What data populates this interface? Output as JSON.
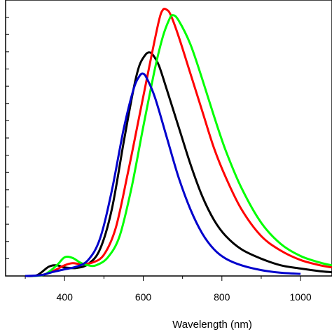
{
  "chart_data": {
    "type": "line",
    "xlabel": "Wavelength (nm)",
    "ylabel": "",
    "xlim": [
      250,
      1080
    ],
    "ylim": [
      0,
      1.0
    ],
    "x_ticks": [
      400,
      600,
      800,
      1000
    ],
    "x_tick_labels": [
      "400",
      "600",
      "800",
      "1000"
    ],
    "y_tick_count": 16,
    "grid": false,
    "legend": "none",
    "series": [
      {
        "color": "#000000",
        "points": [
          [
            300,
            0.0
          ],
          [
            330,
            0.003
          ],
          [
            360,
            0.035
          ],
          [
            380,
            0.04
          ],
          [
            400,
            0.032
          ],
          [
            430,
            0.03
          ],
          [
            460,
            0.045
          ],
          [
            490,
            0.1
          ],
          [
            520,
            0.25
          ],
          [
            550,
            0.5
          ],
          [
            575,
            0.7
          ],
          [
            590,
            0.79
          ],
          [
            605,
            0.83
          ],
          [
            615,
            0.84
          ],
          [
            625,
            0.83
          ],
          [
            640,
            0.79
          ],
          [
            660,
            0.7
          ],
          [
            690,
            0.56
          ],
          [
            720,
            0.42
          ],
          [
            750,
            0.3
          ],
          [
            780,
            0.21
          ],
          [
            810,
            0.15
          ],
          [
            850,
            0.1
          ],
          [
            900,
            0.065
          ],
          [
            950,
            0.04
          ],
          [
            1000,
            0.028
          ],
          [
            1050,
            0.018
          ],
          [
            1080,
            0.014
          ]
        ]
      },
      {
        "color": "#ff0000",
        "points": [
          [
            320,
            0.0
          ],
          [
            350,
            0.006
          ],
          [
            380,
            0.025
          ],
          [
            400,
            0.04
          ],
          [
            420,
            0.048
          ],
          [
            440,
            0.045
          ],
          [
            470,
            0.05
          ],
          [
            500,
            0.08
          ],
          [
            530,
            0.18
          ],
          [
            560,
            0.38
          ],
          [
            590,
            0.6
          ],
          [
            620,
            0.82
          ],
          [
            640,
            0.96
          ],
          [
            650,
            1.0
          ],
          [
            660,
            1.0
          ],
          [
            670,
            0.98
          ],
          [
            690,
            0.9
          ],
          [
            720,
            0.76
          ],
          [
            750,
            0.62
          ],
          [
            780,
            0.48
          ],
          [
            810,
            0.37
          ],
          [
            850,
            0.25
          ],
          [
            900,
            0.15
          ],
          [
            950,
            0.095
          ],
          [
            1000,
            0.06
          ],
          [
            1050,
            0.04
          ],
          [
            1080,
            0.032
          ]
        ]
      },
      {
        "color": "#00ff00",
        "points": [
          [
            320,
            0.0
          ],
          [
            350,
            0.006
          ],
          [
            380,
            0.04
          ],
          [
            400,
            0.07
          ],
          [
            420,
            0.068
          ],
          [
            440,
            0.05
          ],
          [
            460,
            0.04
          ],
          [
            480,
            0.04
          ],
          [
            510,
            0.07
          ],
          [
            540,
            0.15
          ],
          [
            570,
            0.33
          ],
          [
            600,
            0.56
          ],
          [
            630,
            0.78
          ],
          [
            650,
            0.9
          ],
          [
            665,
            0.96
          ],
          [
            675,
            0.98
          ],
          [
            690,
            0.96
          ],
          [
            720,
            0.87
          ],
          [
            750,
            0.74
          ],
          [
            780,
            0.6
          ],
          [
            810,
            0.47
          ],
          [
            850,
            0.33
          ],
          [
            900,
            0.2
          ],
          [
            950,
            0.12
          ],
          [
            1000,
            0.075
          ],
          [
            1050,
            0.05
          ],
          [
            1080,
            0.04
          ]
        ]
      },
      {
        "color": "#0000cc",
        "points": [
          [
            300,
            0.0
          ],
          [
            340,
            0.003
          ],
          [
            370,
            0.015
          ],
          [
            400,
            0.025
          ],
          [
            430,
            0.035
          ],
          [
            460,
            0.06
          ],
          [
            490,
            0.14
          ],
          [
            520,
            0.32
          ],
          [
            550,
            0.55
          ],
          [
            575,
            0.7
          ],
          [
            590,
            0.75
          ],
          [
            600,
            0.76
          ],
          [
            610,
            0.74
          ],
          [
            630,
            0.67
          ],
          [
            660,
            0.52
          ],
          [
            690,
            0.37
          ],
          [
            720,
            0.25
          ],
          [
            750,
            0.16
          ],
          [
            780,
            0.1
          ],
          [
            810,
            0.065
          ],
          [
            850,
            0.04
          ],
          [
            900,
            0.022
          ],
          [
            950,
            0.012
          ],
          [
            1000,
            0.008
          ]
        ]
      }
    ]
  }
}
